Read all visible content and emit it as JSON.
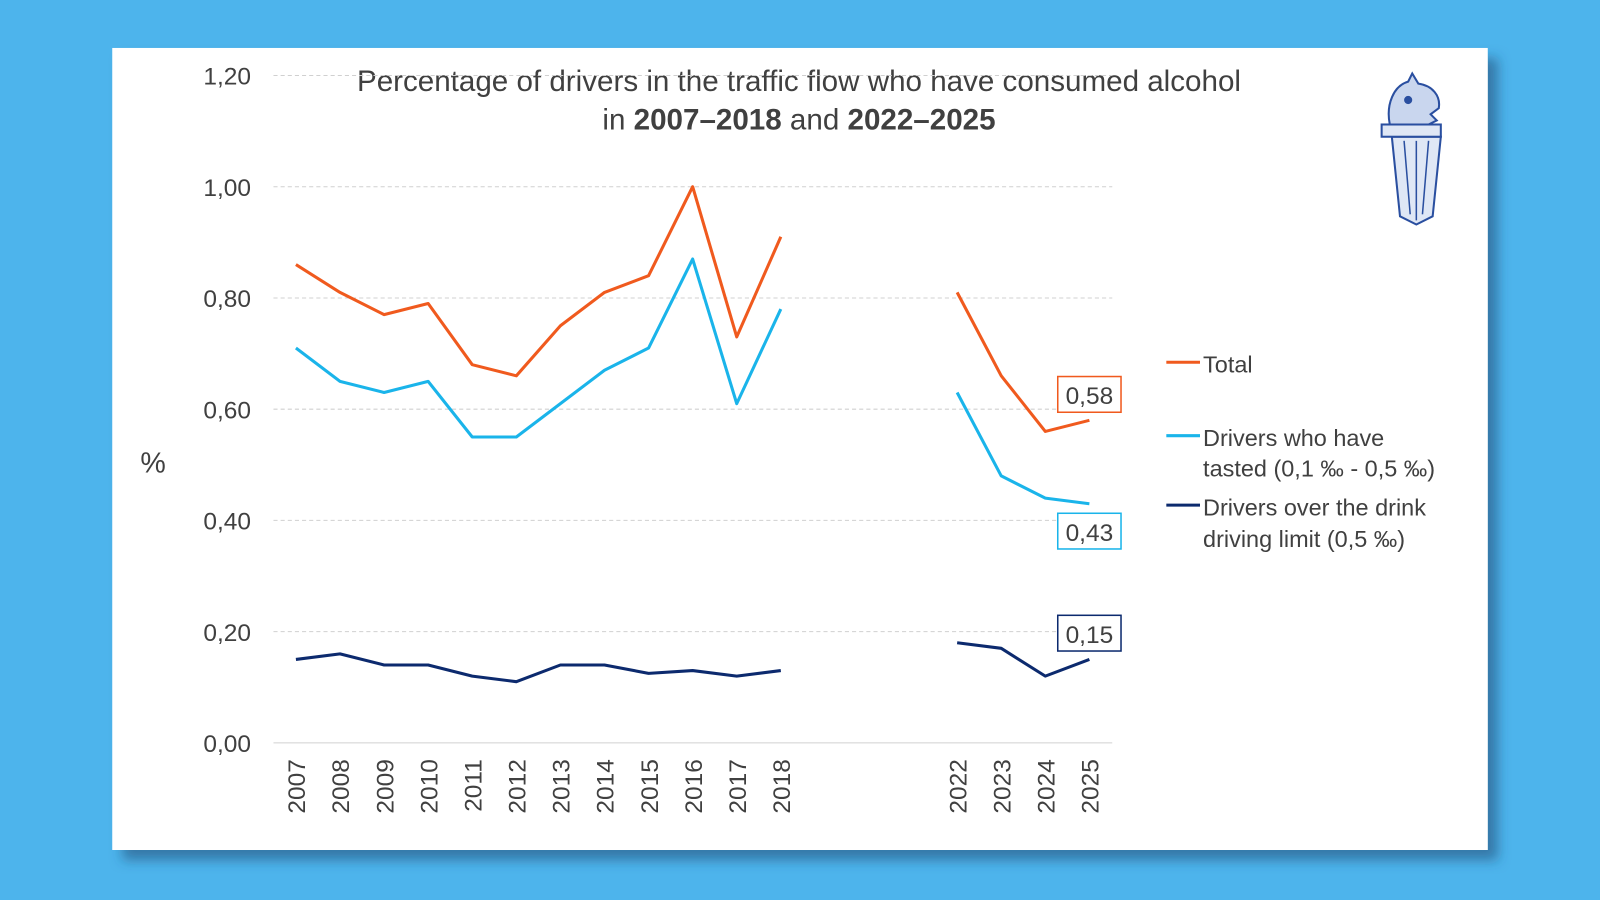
{
  "chart_data": {
    "type": "line",
    "title": {
      "line1": "Percentage of drivers in the traffic flow who have consumed alcohol",
      "in": "in ",
      "range1": "2007–2018",
      "and": " and ",
      "range2": "2022–2025"
    },
    "ylabel": "%",
    "ylim": [
      0,
      1.2
    ],
    "yticks": [
      "0,00",
      "0,20",
      "0,40",
      "0,60",
      "0,80",
      "1,00",
      "1,20"
    ],
    "grid": true,
    "legend_placement": "right",
    "categories": [
      "2007",
      "2008",
      "2009",
      "2010",
      "2011",
      "2012",
      "2013",
      "2014",
      "2015",
      "2016",
      "2017",
      "2018",
      "2022",
      "2023",
      "2024",
      "2025"
    ],
    "series": [
      {
        "name": "Total",
        "color": "#f05a1e",
        "values": [
          0.86,
          0.81,
          0.77,
          0.79,
          0.68,
          0.66,
          0.75,
          0.81,
          0.84,
          1.0,
          0.73,
          0.91,
          0.81,
          0.66,
          0.56,
          0.58
        ],
        "end_label": "0,58"
      },
      {
        "name": "Drivers who have tasted (0,1 ‰ - 0,5 ‰)",
        "legend_lines": [
          "Drivers who have",
          "tasted (0,1 ‰ - 0,5 ‰)"
        ],
        "color": "#1ab4ea",
        "values": [
          0.71,
          0.65,
          0.63,
          0.65,
          0.55,
          0.55,
          0.61,
          0.67,
          0.71,
          0.87,
          0.61,
          0.78,
          0.63,
          0.48,
          0.44,
          0.43
        ],
        "end_label": "0,43"
      },
      {
        "name": "Drivers over the drink driving limit (0,5 ‰)",
        "legend_lines": [
          "Drivers over the drink",
          "driving limit (0,5 ‰)"
        ],
        "color": "#0c2a6e",
        "values": [
          0.15,
          0.16,
          0.14,
          0.14,
          0.12,
          0.11,
          0.14,
          0.14,
          0.125,
          0.13,
          0.12,
          0.13,
          0.18,
          0.17,
          0.12,
          0.15
        ],
        "end_label": "0,15"
      }
    ]
  },
  "logo": {
    "name": "police-emblem-icon",
    "color": "#2a4fa0"
  },
  "colors": {
    "background": "#4db4ec",
    "card": "#ffffff"
  }
}
